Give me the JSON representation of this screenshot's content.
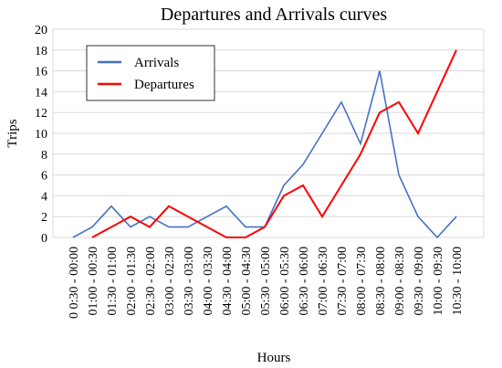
{
  "chart_data": {
    "type": "line",
    "title": "Departures and Arrivals curves",
    "x_label": "Hours",
    "y_label": "Trips",
    "categories": [
      "0 0:30 - 00:00",
      "01:00 - 00:30",
      "01:30 - 01:00",
      "02:00 - 01:30",
      "02:30 - 02:00",
      "03:00 - 02:30",
      "03:30 - 03:00",
      "04:00 - 03:30",
      "04:30 - 04:00",
      "05:00 - 04:30",
      "05:30 - 05:00",
      "06:00 - 05:30",
      "06:30 - 06:00",
      "07:00 - 06:30",
      "07:30 - 07:00",
      "08:00 - 07:30",
      "08:30 - 08:00",
      "09:00 - 08:30",
      "09:30 - 09:00",
      "10:00 - 09:30",
      "10:30 - 10:00"
    ],
    "series": [
      {
        "name": "Arrivals",
        "color": "#4472c4",
        "values": [
          0,
          1,
          3,
          1,
          2,
          1,
          1,
          2,
          3,
          1,
          1,
          5,
          7,
          10,
          13,
          9,
          16,
          6,
          2,
          0,
          2
        ]
      },
      {
        "name": "Departures",
        "color": "#ff0000",
        "values": [
          null,
          0,
          1,
          2,
          1,
          3,
          2,
          1,
          0,
          0,
          1,
          4,
          5,
          2,
          5,
          8,
          12,
          13,
          10,
          14,
          18
        ]
      }
    ],
    "ylim": [
      0,
      20
    ],
    "yticks": [
      0,
      2,
      4,
      6,
      8,
      10,
      12,
      14,
      16,
      18,
      20
    ],
    "grid": true,
    "legend": "upper left"
  }
}
